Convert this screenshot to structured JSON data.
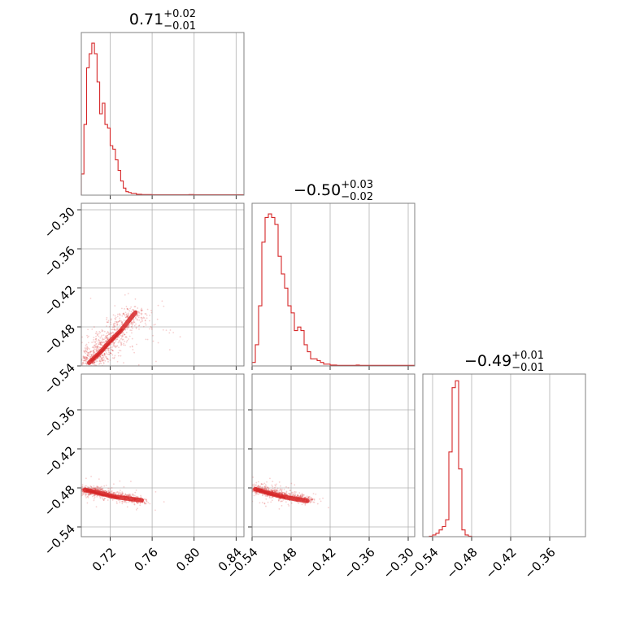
{
  "chart_data": {
    "type": "corner",
    "color": "#d62728",
    "parameters": [
      {
        "title_value": "0.71",
        "title_plus": "+0.02",
        "title_minus": "−0.01",
        "range": [
          0.6925,
          0.8475
        ],
        "ticks": [
          0.72,
          0.76,
          0.8,
          0.84
        ],
        "tick_labels": [
          "0.72",
          "0.76",
          "0.80",
          "0.84"
        ]
      },
      {
        "title_value": "−0.50",
        "title_plus": "+0.03",
        "title_minus": "−0.02",
        "range": [
          -0.54,
          -0.29
        ],
        "ticks": [
          -0.54,
          -0.48,
          -0.42,
          -0.36,
          -0.3
        ],
        "tick_labels": [
          "−0.54",
          "−0.48",
          "−0.42",
          "−0.36",
          "−0.30"
        ]
      },
      {
        "title_value": "−0.49",
        "title_plus": "+0.01",
        "title_minus": "−0.01",
        "range": [
          -0.555,
          -0.305
        ],
        "ticks": [
          -0.54,
          -0.48,
          -0.42,
          -0.36
        ],
        "tick_labels": [
          "−0.54",
          "−0.48",
          "−0.42",
          "−0.36"
        ],
        "y_ticks": [
          -0.54,
          -0.48,
          -0.42,
          -0.36
        ],
        "y_tick_labels": [
          "−0.54",
          "−0.48",
          "−0.42",
          "−0.36"
        ]
      }
    ],
    "histograms": [
      {
        "bin_start": 0.6925,
        "bin_width": 0.0025,
        "counts": [
          12,
          40,
          72,
          80,
          86,
          80,
          64,
          46,
          52,
          40,
          38,
          28,
          26,
          20,
          14,
          8,
          4,
          2,
          1.5,
          1,
          1,
          0.5,
          0.5,
          0.3,
          0.3,
          0.3,
          0.3,
          0.2,
          0.2,
          0.2,
          0.2,
          0.2,
          0.2,
          0.2,
          0.2,
          0.2,
          0.2,
          0.2,
          0.2,
          0.2,
          0.2,
          0.3,
          0.3,
          0.2,
          0.2,
          0.2,
          0.2,
          0.2,
          0.2,
          0.2,
          0.2,
          0.2,
          0.2,
          0.2,
          0.2,
          0.2,
          0.2,
          0.2,
          0.2,
          0.2,
          0.2,
          0.2
        ],
        "ymax": 92
      },
      {
        "bin_start": -0.54,
        "bin_width": 0.005,
        "counts": [
          2,
          12,
          34,
          70,
          84,
          86,
          84,
          80,
          62,
          52,
          44,
          34,
          30,
          20,
          22,
          20,
          12,
          8,
          4,
          4,
          3,
          2,
          1,
          1,
          0.5,
          0.5,
          0.3,
          0.3,
          0.3,
          0.3,
          0.3,
          0.3,
          0.5,
          0.3,
          0.3,
          0.3,
          0.3,
          0.3,
          0.3,
          0.3,
          0.3,
          0.3,
          0.3,
          0.3,
          0.3,
          0.3,
          0.3,
          0.3,
          0.3,
          0.3
        ],
        "ymax": 92
      },
      {
        "bin_start": -0.555,
        "bin_width": 0.005,
        "counts": [
          0,
          0,
          0.3,
          1,
          2,
          4,
          6,
          10,
          50,
          88,
          92,
          40,
          4,
          1,
          0.3,
          0,
          0,
          0,
          0,
          0,
          0,
          0,
          0,
          0,
          0,
          0,
          0,
          0,
          0,
          0,
          0,
          0,
          0,
          0,
          0,
          0,
          0,
          0,
          0,
          0,
          0,
          0,
          0,
          0,
          0,
          0,
          0,
          0,
          0,
          0
        ],
        "ymax": 96
      }
    ],
    "scatter_2d": [
      {
        "x_param": 0,
        "y_param": 1,
        "density_axis": {
          "x0": 0.7,
          "y0": -0.535,
          "x1": 0.745,
          "y1": -0.455,
          "width": 0.006
        },
        "contours": [
          [
            [
              0.7,
              -0.535
            ],
            [
              0.71,
              -0.52
            ],
            [
              0.72,
              -0.502
            ],
            [
              0.73,
              -0.486
            ],
            [
              0.738,
              -0.47
            ],
            [
              0.744,
              -0.458
            ]
          ],
          [
            [
              0.702,
              -0.532
            ],
            [
              0.712,
              -0.517
            ],
            [
              0.722,
              -0.5
            ],
            [
              0.731,
              -0.484
            ]
          ]
        ]
      },
      {
        "x_param": 0,
        "y_param": 2,
        "density_axis": {
          "x0": 0.695,
          "y0": -0.483,
          "x1": 0.75,
          "y1": -0.5,
          "width": 0.004
        },
        "contours": [
          [
            [
              0.696,
              -0.483
            ],
            [
              0.71,
              -0.488
            ],
            [
              0.725,
              -0.494
            ],
            [
              0.74,
              -0.497
            ],
            [
              0.75,
              -0.499
            ]
          ],
          [
            [
              0.698,
              -0.484
            ],
            [
              0.712,
              -0.49
            ],
            [
              0.728,
              -0.495
            ]
          ]
        ]
      },
      {
        "x_param": 1,
        "y_param": 2,
        "density_axis": {
          "x0": -0.535,
          "y0": -0.482,
          "x1": -0.45,
          "y1": -0.5,
          "width": 0.004
        },
        "contours": [
          [
            [
              -0.535,
              -0.482
            ],
            [
              -0.515,
              -0.488
            ],
            [
              -0.495,
              -0.493
            ],
            [
              -0.475,
              -0.497
            ],
            [
              -0.455,
              -0.5
            ]
          ],
          [
            [
              -0.532,
              -0.483
            ],
            [
              -0.51,
              -0.49
            ],
            [
              -0.49,
              -0.495
            ]
          ]
        ]
      }
    ]
  }
}
